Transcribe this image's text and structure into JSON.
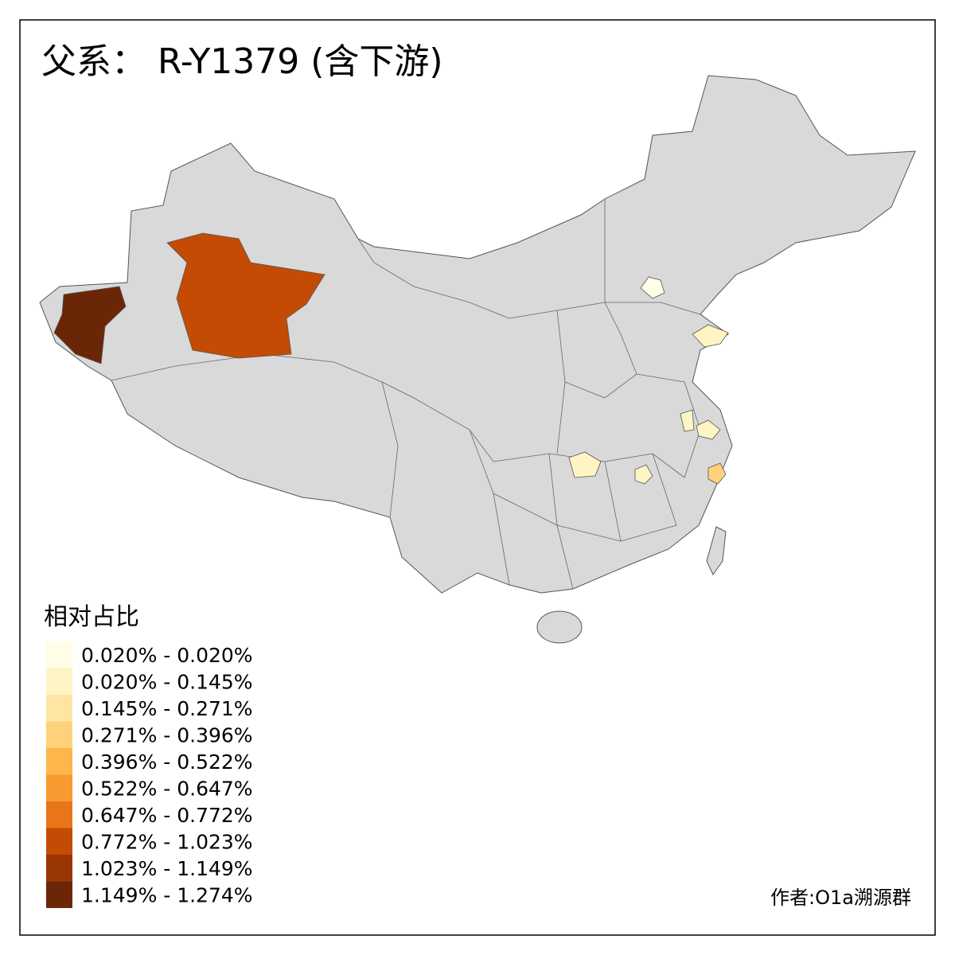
{
  "title": "父系： R-Y1379 (含下游)",
  "legend": {
    "title": "相对占比",
    "items": [
      {
        "label": "0.020% - 0.020%",
        "color": "#fffde6"
      },
      {
        "label": "0.020% - 0.145%",
        "color": "#fff4c4"
      },
      {
        "label": "0.145% - 0.271%",
        "color": "#fee6a2"
      },
      {
        "label": "0.271% - 0.396%",
        "color": "#fed27a"
      },
      {
        "label": "0.396% - 0.522%",
        "color": "#feb54c"
      },
      {
        "label": "0.522% - 0.647%",
        "color": "#f99a31"
      },
      {
        "label": "0.647% - 0.772%",
        "color": "#e8751a"
      },
      {
        "label": "0.772% - 1.023%",
        "color": "#c44b04"
      },
      {
        "label": "1.023% - 1.149%",
        "color": "#993604"
      },
      {
        "label": "1.149% - 1.274%",
        "color": "#6b2608"
      }
    ]
  },
  "credit": "作者:O1a溯源群"
}
